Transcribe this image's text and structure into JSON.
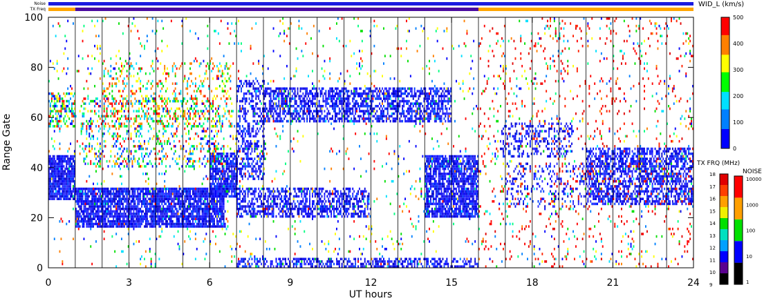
{
  "chart_data": {
    "type": "heatmap",
    "xlabel": "UT hours",
    "ylabel": "Range Gate",
    "xlim": [
      0,
      24
    ],
    "ylim": [
      0,
      100
    ],
    "x_ticks": [
      "0",
      "3",
      "6",
      "9",
      "12",
      "15",
      "18",
      "21",
      "24"
    ],
    "y_ticks": [
      "0",
      "20",
      "40",
      "60",
      "80",
      "100"
    ],
    "grid": "vertical lines at scan boundaries",
    "scan_boundaries_ut": [
      1,
      2,
      3,
      4,
      5,
      6,
      7,
      8,
      9,
      10,
      11,
      12,
      13,
      14,
      15,
      16,
      17,
      18,
      19,
      20,
      21,
      22,
      23
    ],
    "top_strips": [
      {
        "label": "Noise",
        "segments": [
          {
            "from": 0,
            "to": 24,
            "color": "#1a1ae0"
          }
        ]
      },
      {
        "label": "TX Freq",
        "segments": [
          {
            "from": 0,
            "to": 1,
            "color": "#ffa500"
          },
          {
            "from": 1,
            "to": 16,
            "color": "#4b0aa0"
          },
          {
            "from": 16,
            "to": 24,
            "color": "#ffa500"
          }
        ]
      }
    ],
    "colorbar_main": {
      "title": "WID_L (km/s)",
      "min": 0,
      "max": 500,
      "tick_labels": [
        "0",
        "100",
        "200",
        "300",
        "400",
        "500"
      ],
      "colors": [
        "#0000ff",
        "#0080ff",
        "#00e0ff",
        "#00ff00",
        "#ffff00",
        "#ff8000",
        "#ff0000"
      ]
    },
    "colorbar_freq": {
      "title": "TX FRQ (MHz)",
      "tick_labels": [
        "9",
        "10",
        "11",
        "12",
        "13",
        "14",
        "15",
        "16",
        "17",
        "18"
      ],
      "colors": [
        "#000000",
        "#5a0090",
        "#0000ff",
        "#00a0ff",
        "#00e0c0",
        "#00e000",
        "#f0f000",
        "#ffa000",
        "#ff4000",
        "#e00000"
      ]
    },
    "colorbar_noise": {
      "title": "NOISE",
      "tick_labels": [
        "1",
        "10",
        "100",
        "1000",
        "10000"
      ],
      "colors": [
        "#000000",
        "#0000ff",
        "#00e000",
        "#ffa000",
        "#ff0000"
      ]
    },
    "regions": [
      {
        "x": [
          0,
          1
        ],
        "y": [
          27,
          45
        ],
        "density": 0.9,
        "palette": "blue"
      },
      {
        "x": [
          0,
          1
        ],
        "y": [
          56,
          70
        ],
        "density": 0.5,
        "palette": "mixed"
      },
      {
        "x": [
          1,
          6.5
        ],
        "y": [
          16,
          32
        ],
        "density": 0.85,
        "palette": "blue"
      },
      {
        "x": [
          6,
          7
        ],
        "y": [
          28,
          46
        ],
        "density": 0.85,
        "palette": "blue"
      },
      {
        "x": [
          1.2,
          6.5
        ],
        "y": [
          40,
          68
        ],
        "density": 0.22,
        "palette": "mixed"
      },
      {
        "x": [
          2,
          6.8
        ],
        "y": [
          56,
          82
        ],
        "density": 0.18,
        "palette": "warm"
      },
      {
        "x": [
          7,
          8
        ],
        "y": [
          35,
          75
        ],
        "density": 0.45,
        "palette": "blue"
      },
      {
        "x": [
          8,
          15
        ],
        "y": [
          58,
          72
        ],
        "density": 0.6,
        "palette": "blue"
      },
      {
        "x": [
          7,
          12
        ],
        "y": [
          20,
          32
        ],
        "density": 0.55,
        "palette": "blue"
      },
      {
        "x": [
          14,
          16
        ],
        "y": [
          20,
          45
        ],
        "density": 0.8,
        "palette": "blue"
      },
      {
        "x": [
          7,
          16
        ],
        "y": [
          0,
          4
        ],
        "density": 0.5,
        "palette": "blue"
      },
      {
        "x": [
          16.8,
          19.5
        ],
        "y": [
          44,
          58
        ],
        "density": 0.3,
        "palette": "blue"
      },
      {
        "x": [
          17,
          20
        ],
        "y": [
          24,
          42
        ],
        "density": 0.18,
        "palette": "blue"
      },
      {
        "x": [
          20,
          24
        ],
        "y": [
          25,
          48
        ],
        "density": 0.6,
        "palette": "blue"
      },
      {
        "x": [
          0,
          24
        ],
        "y": [
          0,
          100
        ],
        "density": 0.035,
        "palette": "mixed"
      },
      {
        "x": [
          16,
          24
        ],
        "y": [
          0,
          100
        ],
        "density": 0.03,
        "palette": "red"
      }
    ]
  }
}
